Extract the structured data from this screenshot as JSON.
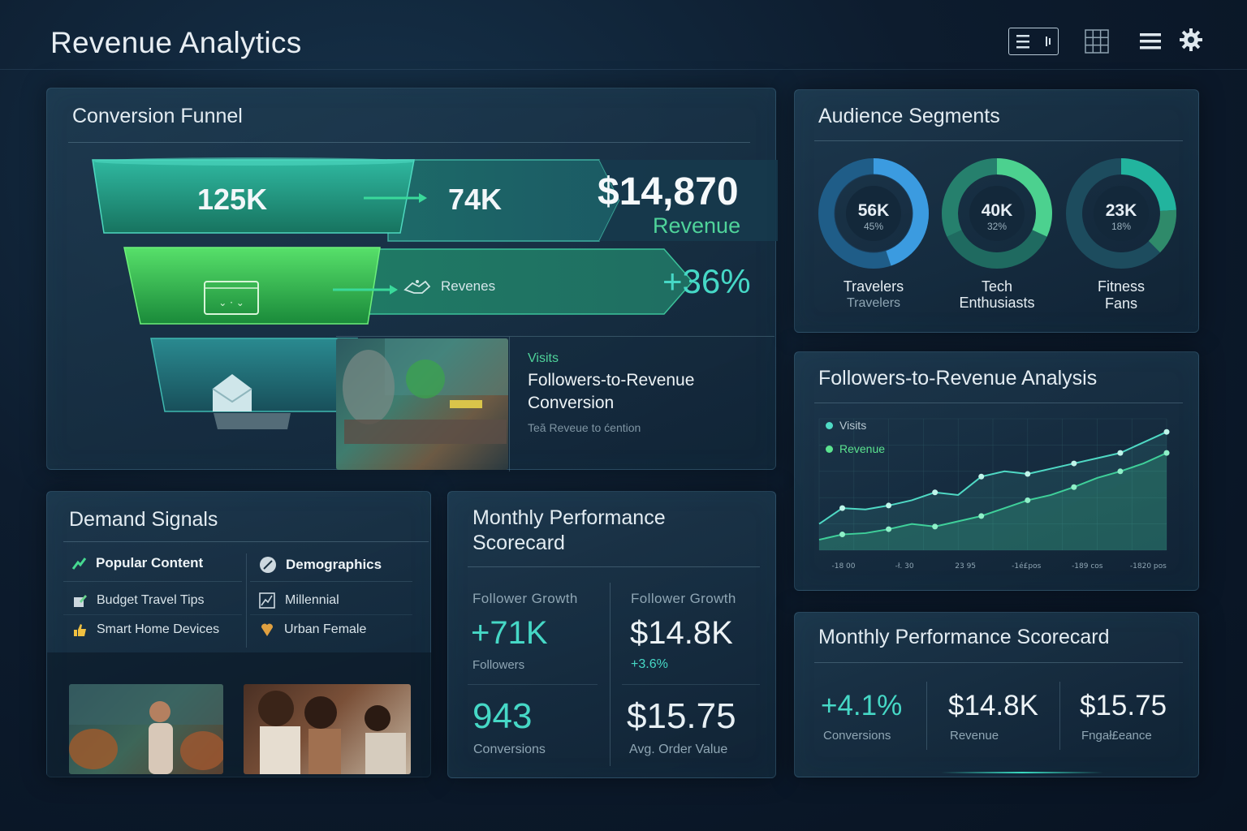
{
  "app": {
    "title": "Revenue Analytics"
  },
  "toolbar": {
    "icons": [
      "list-view-icon",
      "grid-view-icon",
      "menu-icon",
      "settings-gear-icon"
    ]
  },
  "funnel": {
    "title": "Conversion Funnel",
    "stage1_value": "125K",
    "stage2_value": "74K",
    "revenue_value": "$14,870",
    "revenue_label": "Revenue",
    "mid_label": "Revenes",
    "growth": "+36%",
    "card": {
      "kicker": "Visits",
      "title_line1": "Followers-to-Revenue",
      "title_line2": "Conversion",
      "subtitle": "Teă Reveue to ćention"
    }
  },
  "audience": {
    "title": "Audience Segments",
    "segments": [
      {
        "value": "56K",
        "pct": "45%",
        "name_line1": "Travelers",
        "name_line2": "Travelers",
        "share": 0.45
      },
      {
        "value": "40K",
        "pct": "32%",
        "name_line1": "Tech",
        "name_line2": "Enthusiasts",
        "share": 0.32
      },
      {
        "value": "23K",
        "pct": "18%",
        "name_line1": "Fitness",
        "name_line2": "Fans",
        "share": 0.18
      }
    ]
  },
  "analysis": {
    "title": "Followers-to-Revenue Analysis",
    "legend": [
      {
        "name": "Visits",
        "color": "#4fd9c4"
      },
      {
        "name": "Revenue",
        "color": "#5be38f"
      }
    ],
    "x_ticks": [
      "-18 00",
      "-ł. 30",
      "23 95",
      "-1é£pos",
      "-189 cos",
      "-1820 pos"
    ]
  },
  "chart_data": {
    "type": "line",
    "title": "Followers-to-Revenue Analysis",
    "x_labels": [
      "-18 00",
      "-ł. 30",
      "23 95",
      "-1é£pos",
      "-189 cos",
      "-1820 pos"
    ],
    "series": [
      {
        "name": "Visits",
        "values": [
          20,
          32,
          31,
          34,
          38,
          44,
          42,
          56,
          60,
          58,
          62,
          66,
          70,
          74,
          82,
          90
        ]
      },
      {
        "name": "Revenue",
        "values": [
          8,
          12,
          13,
          16,
          20,
          18,
          22,
          26,
          32,
          38,
          42,
          48,
          55,
          60,
          66,
          74
        ]
      }
    ],
    "grid": true,
    "legend_position": "top-left"
  },
  "demand": {
    "title": "Demand Signals",
    "col1_header": "Popular Content",
    "col2_header": "Demographics",
    "col1_items": [
      "Budget Travel Tips",
      "Smart Home Devices"
    ],
    "col2_items": [
      "Millennial",
      "Urban Female"
    ]
  },
  "scorecard": {
    "title_line1": "Monthly Performance",
    "title_line2": "Scorecard",
    "col1_header": "Follower Growth",
    "col2_header": "Follower Growth",
    "m1_value": "+71K",
    "m1_label": "Followers",
    "m2_value": "$14.8K",
    "m2_delta": "+3.6%",
    "m3_value": "943",
    "m3_label": "Conversions",
    "m4_value": "$15.75",
    "m4_label": "Avg. Order Value"
  },
  "scorecard2": {
    "title": "Monthly Performance Scorecard",
    "items": [
      {
        "value": "+4.1%",
        "label": "Conversions"
      },
      {
        "value": "$14.8K",
        "label": "Revenue"
      },
      {
        "value": "$15.75",
        "label": "Fngał£eance"
      }
    ]
  },
  "colors": {
    "accent": "#4fe0b6",
    "accent_green": "#3fd45f",
    "panel_bg": "#1a3346",
    "ring_blue": "#3a9ad6",
    "ring_teal": "#2ab49e"
  }
}
